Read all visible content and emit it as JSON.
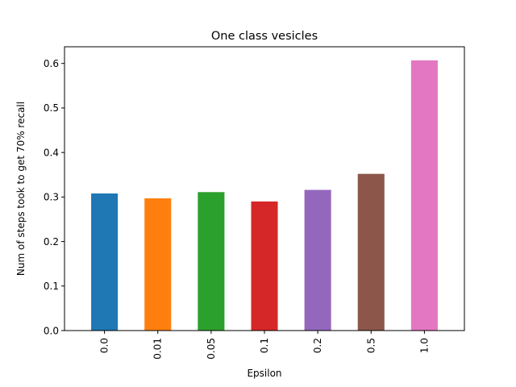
{
  "chart_data": {
    "type": "bar",
    "title": "One class vesicles",
    "xlabel": "Epsilon",
    "ylabel": "Num of steps took to get 70% recall",
    "categories": [
      "0.0",
      "0.01",
      "0.05",
      "0.1",
      "0.2",
      "0.5",
      "1.0"
    ],
    "values": [
      0.308,
      0.297,
      0.311,
      0.29,
      0.316,
      0.352,
      0.607
    ],
    "colors": [
      "#1f77b4",
      "#ff7f0e",
      "#2ca02c",
      "#d62728",
      "#9467bd",
      "#8c564b",
      "#e377c2"
    ],
    "ylim": [
      0,
      0.6375
    ],
    "yticks": [
      0.0,
      0.1,
      0.2,
      0.3,
      0.4,
      0.5,
      0.6
    ],
    "ytick_labels": [
      "0.0",
      "0.1",
      "0.2",
      "0.3",
      "0.4",
      "0.5",
      "0.6"
    ],
    "grid": false,
    "legend": false
  }
}
